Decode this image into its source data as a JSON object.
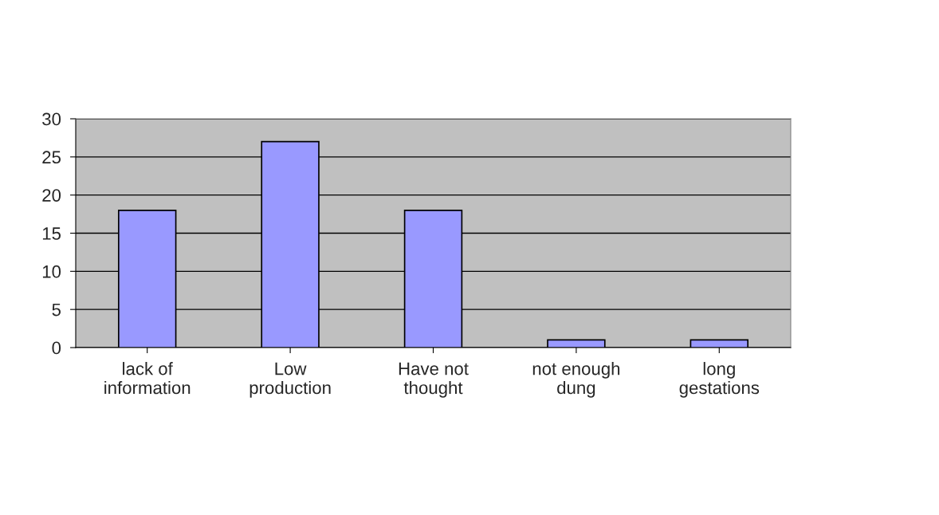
{
  "chart_data": {
    "type": "bar",
    "categories": [
      "lack of\ninformation",
      "Low\nproduction",
      "Have not\nthought",
      "not enough\ndung",
      "long\ngestations"
    ],
    "values": [
      18,
      27,
      18,
      1,
      1
    ],
    "color": "#9999ff",
    "ylim": [
      0,
      30
    ],
    "yticks": [
      0,
      5,
      10,
      15,
      20,
      25,
      30
    ],
    "grid": "y",
    "legend": false
  }
}
